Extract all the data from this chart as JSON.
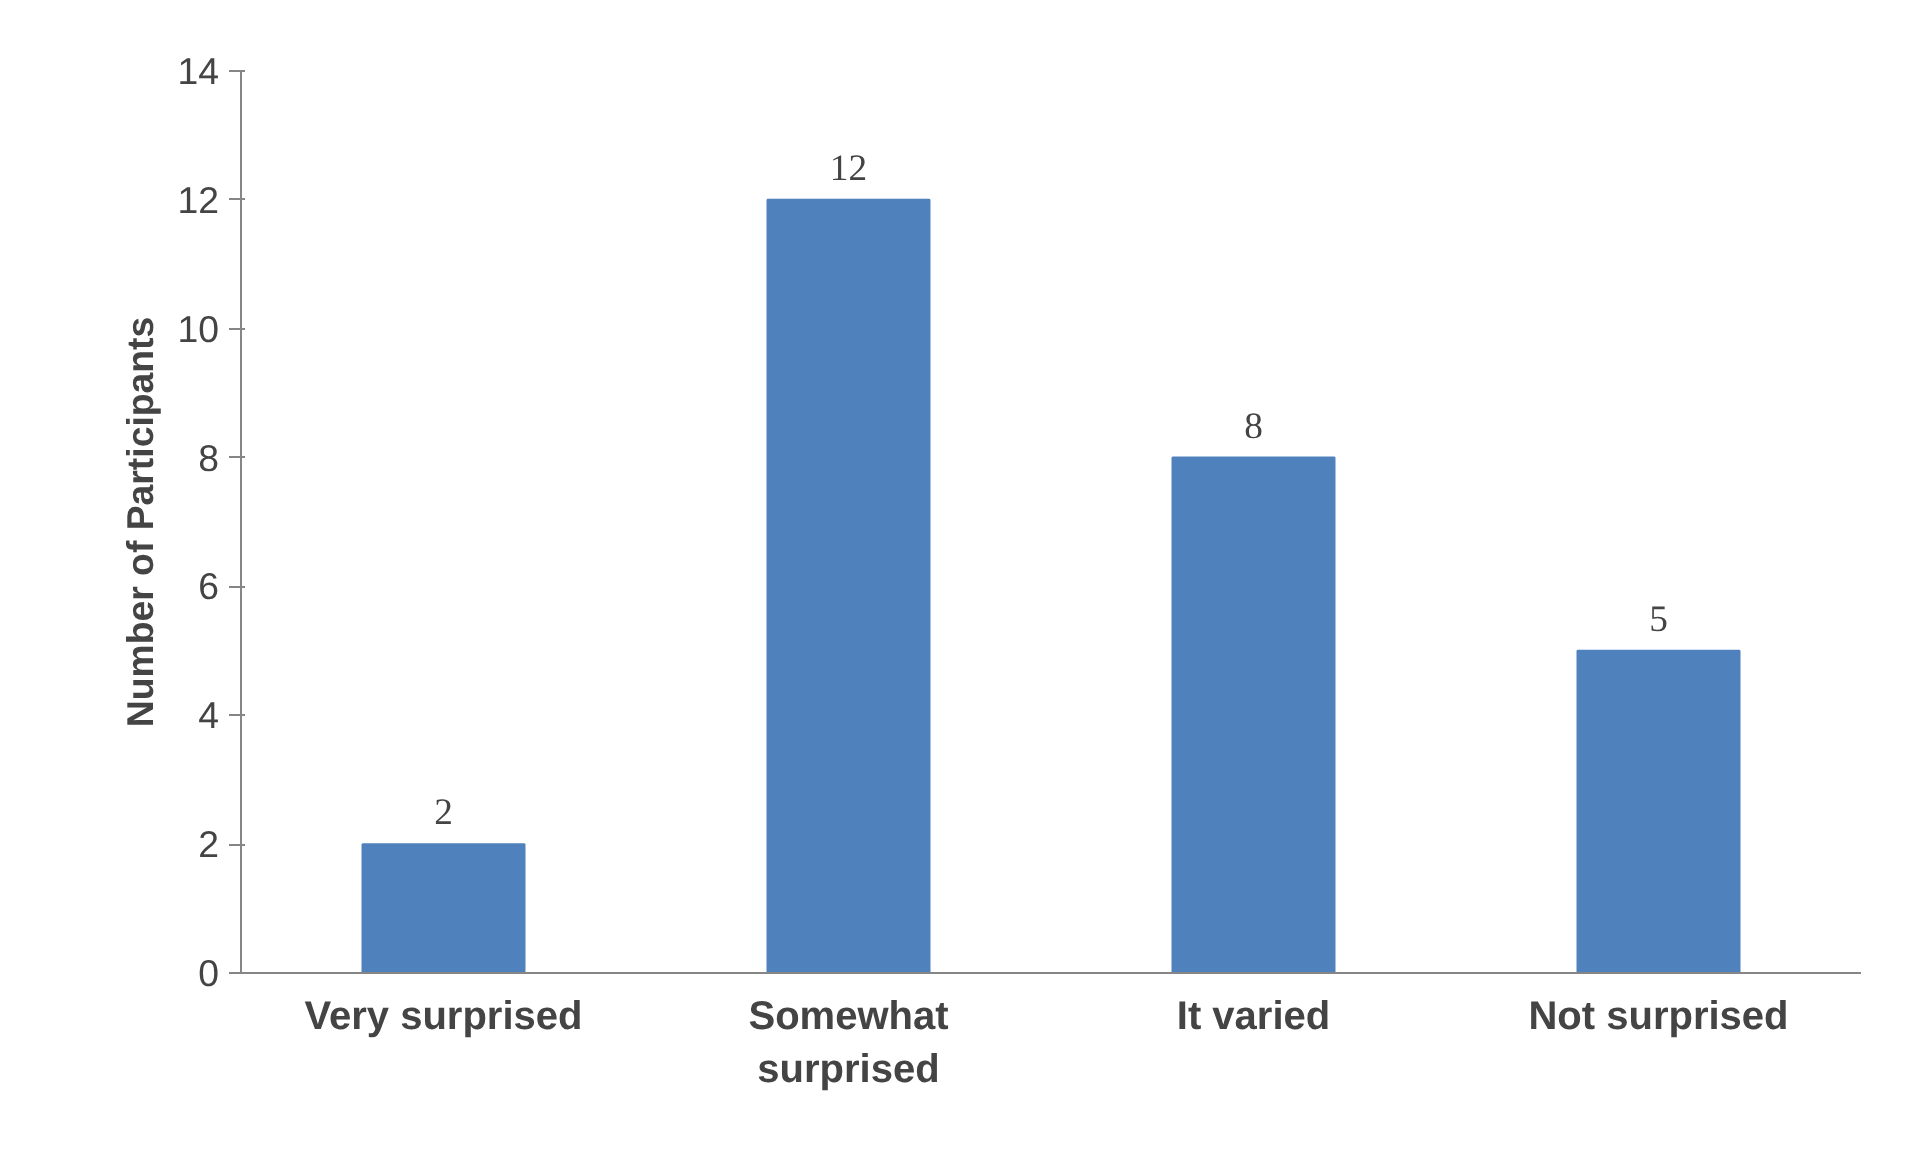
{
  "chart_data": {
    "type": "bar",
    "ylabel": "Number of Participants",
    "categories": [
      "Very surprised",
      "Somewhat surprised",
      "It varied",
      "Not surprised"
    ],
    "values": [
      2,
      12,
      8,
      5
    ],
    "color": "#4f81bd",
    "ylim": [
      0,
      14
    ],
    "yticks": [
      0,
      2,
      4,
      6,
      8,
      10,
      12,
      14
    ],
    "grid": false,
    "data_labels": true
  }
}
